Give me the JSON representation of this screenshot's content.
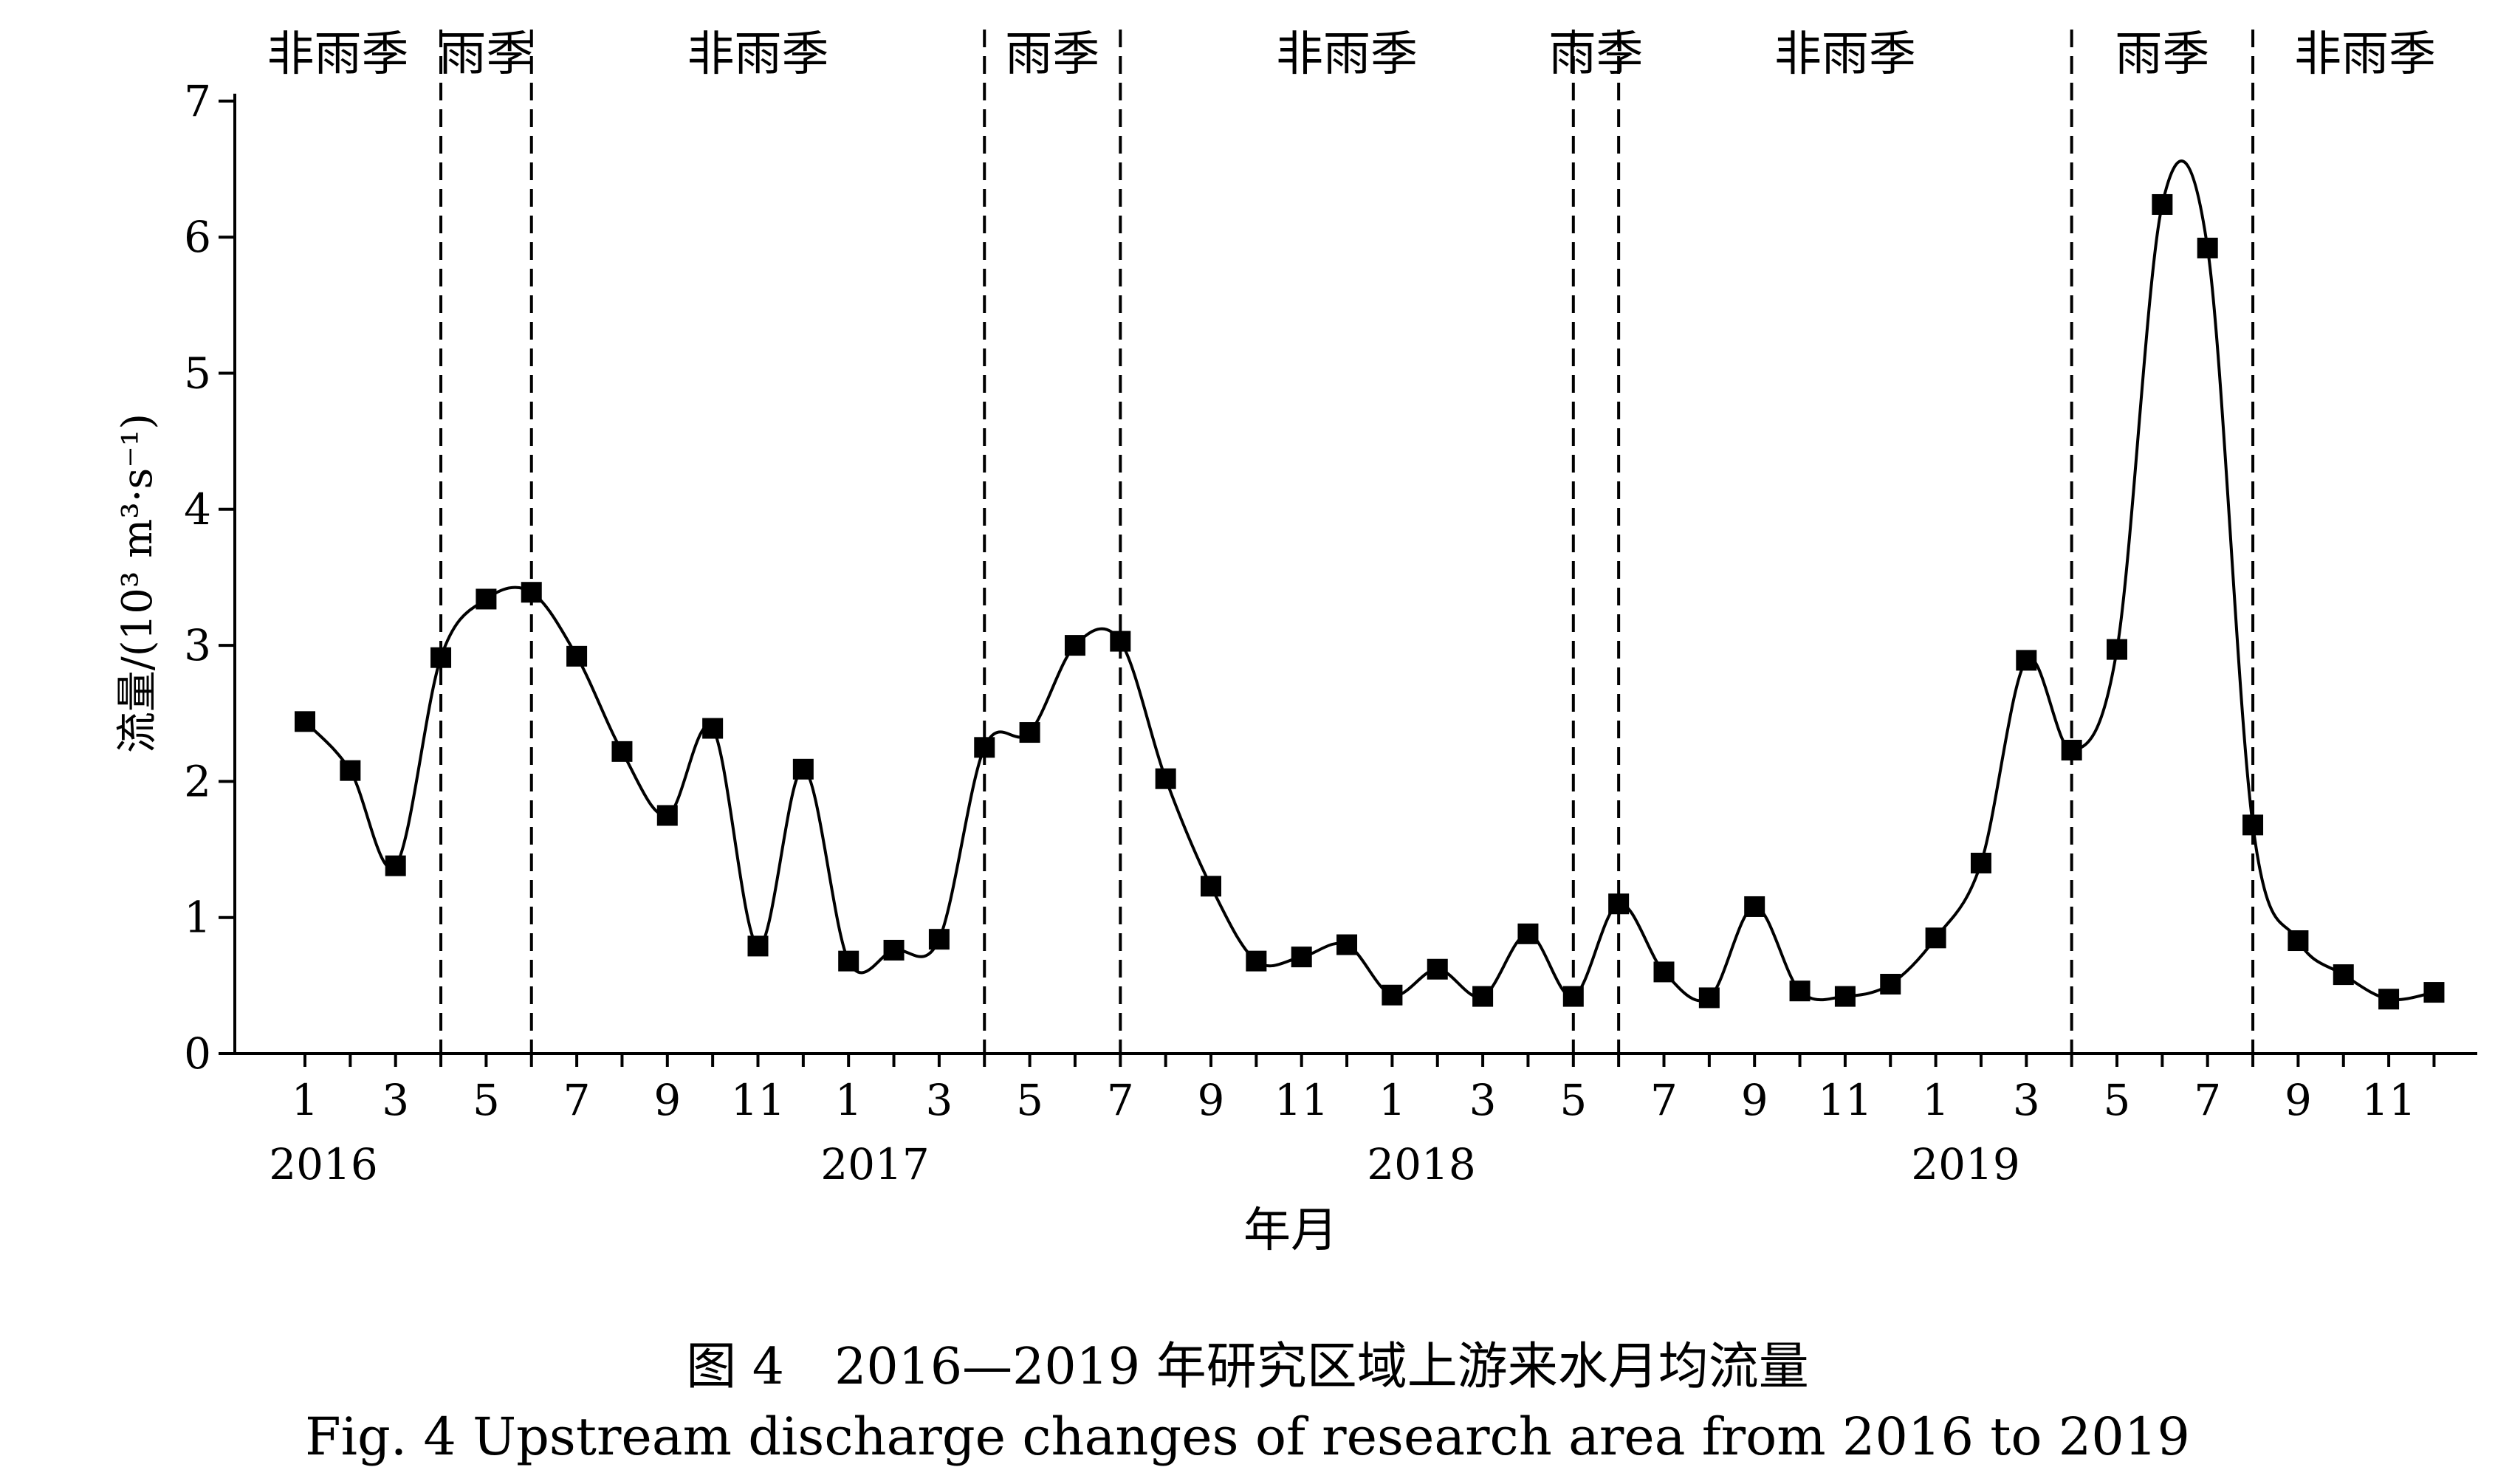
{
  "chart_data": {
    "type": "line",
    "title": "",
    "xlabel": "年月",
    "ylabel": "流量/(10³ m³·s⁻¹)",
    "ylim": [
      0,
      7
    ],
    "yticks": [
      "0",
      "1",
      "2",
      "3",
      "4",
      "5",
      "6",
      "7"
    ],
    "x_ticks": [
      "1",
      "3",
      "5",
      "7",
      "9",
      "11",
      "1",
      "3",
      "5",
      "7",
      "9",
      "11",
      "1",
      "3",
      "5",
      "7",
      "9",
      "11",
      "1",
      "3",
      "5",
      "7",
      "9",
      "11"
    ],
    "years": [
      "2016",
      "2017",
      "2018",
      "2019"
    ],
    "grid": false,
    "legend": "none",
    "marker": "square",
    "series": [
      {
        "months": [
          "2016-01",
          "2016-02",
          "2016-03",
          "2016-04",
          "2016-05",
          "2016-06",
          "2016-07",
          "2016-08",
          "2016-09",
          "2016-10",
          "2016-11",
          "2016-12",
          "2017-01",
          "2017-02",
          "2017-03",
          "2017-04",
          "2017-05",
          "2017-06",
          "2017-07",
          "2017-08",
          "2017-09",
          "2017-10",
          "2017-11",
          "2017-12",
          "2018-01",
          "2018-02",
          "2018-03",
          "2018-04",
          "2018-05",
          "2018-06",
          "2018-07",
          "2018-08",
          "2018-09",
          "2018-10",
          "2018-11",
          "2018-12",
          "2019-01",
          "2019-02",
          "2019-03",
          "2019-04",
          "2019-05",
          "2019-06",
          "2019-07",
          "2019-08",
          "2019-09",
          "2019-10",
          "2019-11",
          "2019-12"
        ],
        "values": [
          2.44,
          2.08,
          1.38,
          2.91,
          3.34,
          3.39,
          2.92,
          2.22,
          1.75,
          2.39,
          0.79,
          2.09,
          0.68,
          0.76,
          0.84,
          2.25,
          2.36,
          3.0,
          3.03,
          2.02,
          1.23,
          0.68,
          0.71,
          0.8,
          0.43,
          0.62,
          0.42,
          0.88,
          0.42,
          1.1,
          0.6,
          0.41,
          1.08,
          0.46,
          0.42,
          0.51,
          0.85,
          1.4,
          2.89,
          2.23,
          2.97,
          6.24,
          5.92,
          1.68,
          0.83,
          0.58,
          0.4,
          0.45
        ]
      }
    ],
    "seasons": [
      {
        "label": "非雨季",
        "from": "2016-01",
        "to": "2016-04"
      },
      {
        "label": "雨季",
        "from": "2016-04",
        "to": "2016-06"
      },
      {
        "label": "非雨季",
        "from": "2016-06",
        "to": "2017-04"
      },
      {
        "label": "雨季",
        "from": "2017-04",
        "to": "2017-07"
      },
      {
        "label": "非雨季",
        "from": "2017-07",
        "to": "2018-05"
      },
      {
        "label": "雨季",
        "from": "2018-05",
        "to": "2018-06"
      },
      {
        "label": "非雨季",
        "from": "2018-06",
        "to": "2019-04"
      },
      {
        "label": "雨季",
        "from": "2019-04",
        "to": "2019-08"
      },
      {
        "label": "非雨季",
        "from": "2019-08",
        "to": "2019-12"
      }
    ],
    "season_boundaries": [
      "2016-04",
      "2016-06",
      "2017-04",
      "2017-07",
      "2018-05",
      "2018-06",
      "2019-04",
      "2019-08"
    ]
  },
  "caption": {
    "cn": "图 4　2016—2019 年研究区域上游来水月均流量",
    "en": "Fig. 4   Upstream discharge changes of research area from 2016 to 2019"
  }
}
